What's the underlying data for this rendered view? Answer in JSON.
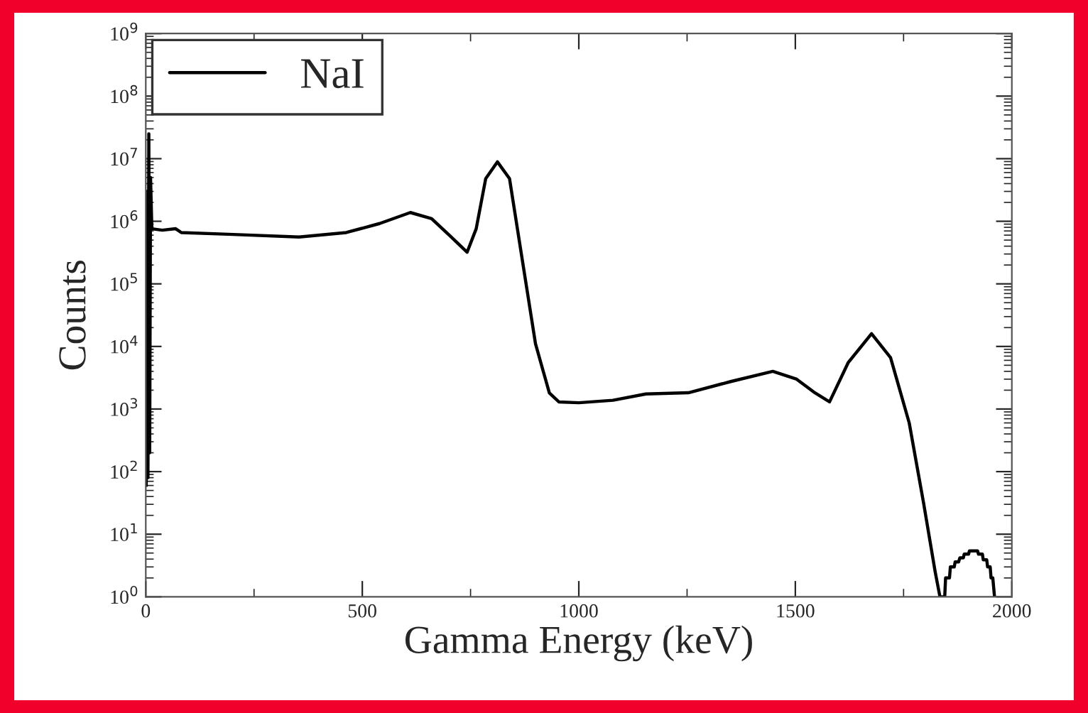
{
  "chart_data": {
    "type": "line",
    "xlabel": "Gamma Energy (keV)",
    "ylabel": "Counts",
    "log": "y",
    "xlim": [
      0,
      2000
    ],
    "xticks": [
      0,
      500,
      1000,
      1500,
      2000
    ],
    "ylim": [
      1,
      1000000000
    ],
    "yticks": [
      {
        "value": 1,
        "label": "10$^{0}$"
      },
      {
        "value": 10,
        "label": "10$^{1}$"
      },
      {
        "value": 100,
        "label": "10$^{2}$"
      },
      {
        "value": 1000,
        "label": "10$^{3}$"
      },
      {
        "value": 10000,
        "label": "10$^{4}$"
      },
      {
        "value": 100000,
        "label": "10$^{5}$"
      },
      {
        "value": 1000000,
        "label": "10$^{6}$"
      },
      {
        "value": 10000000,
        "label": "10$^{7}$"
      },
      {
        "value": 100000000,
        "label": "10$^{8}$"
      },
      {
        "value": 1000000000,
        "label": "10$^{9}$"
      }
    ],
    "legend": "top left",
    "grid": false,
    "marker": "none",
    "line_style": "solid",
    "series": [
      {
        "name": "NaI",
        "color": "#000000",
        "x": [
          1,
          3,
          5,
          7,
          9,
          11,
          14,
          38,
          69,
          82,
          191,
          354,
          463,
          540,
          611,
          660,
          703,
          742,
          763,
          785,
          812,
          840,
          867,
          900,
          932,
          954,
          1000,
          1079,
          1155,
          1253,
          1351,
          1448,
          1503,
          1546,
          1579,
          1622,
          1676,
          1720,
          1763,
          1796,
          1823,
          1834,
          1845,
          1847,
          1856,
          1858,
          1867,
          1869,
          1877,
          1880,
          1888,
          1890,
          1900,
          1902,
          1910,
          1912,
          1921,
          1923,
          1932,
          1934,
          1942,
          1944,
          1950,
          1952,
          1956,
          1960
        ],
        "values": [
          60,
          3000000,
          80,
          25000000,
          200,
          5000000,
          760000,
          720000,
          760000,
          660000,
          620000,
          560000,
          660000,
          920000,
          1380000,
          1100000,
          580000,
          320000,
          760000,
          4800000,
          8900000,
          4800000,
          310000,
          11000,
          1800,
          1300,
          1260,
          1380,
          1740,
          1820,
          2750,
          4000,
          3000,
          1800,
          1300,
          5500,
          16000,
          6600,
          600,
          32,
          2.5,
          1,
          1,
          2,
          2,
          3,
          3,
          3.6,
          3.6,
          4.2,
          4.2,
          4.8,
          4.8,
          5.4,
          5.4,
          5.4,
          5.4,
          4.8,
          4.8,
          3.9,
          3.9,
          3,
          3,
          2,
          2,
          1
        ]
      }
    ]
  }
}
